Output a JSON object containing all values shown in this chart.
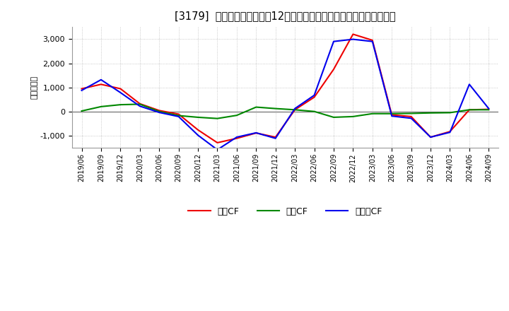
{
  "title": "[3179]  キャッシュフローの12か月移動合計の対前年同期増減額の推移",
  "ylabel": "（百万円）",
  "background_color": "#ffffff",
  "grid_color": "#bbbbbb",
  "x_labels": [
    "2019/06",
    "2019/09",
    "2019/12",
    "2020/03",
    "2020/06",
    "2020/09",
    "2020/12",
    "2021/03",
    "2021/06",
    "2021/09",
    "2021/12",
    "2022/03",
    "2022/06",
    "2022/09",
    "2022/12",
    "2023/03",
    "2023/06",
    "2023/09",
    "2023/12",
    "2024/03",
    "2024/06",
    "2024/09"
  ],
  "operating_cf": [
    950,
    1130,
    950,
    330,
    50,
    -100,
    -750,
    -1280,
    -1100,
    -880,
    -1050,
    80,
    600,
    1750,
    3200,
    2950,
    -130,
    -200,
    -1050,
    -820,
    80,
    100
  ],
  "investing_cf": [
    30,
    210,
    290,
    310,
    10,
    -160,
    -230,
    -280,
    -150,
    190,
    130,
    80,
    10,
    -230,
    -200,
    -80,
    -80,
    -70,
    -50,
    -40,
    80,
    80
  ],
  "free_cf": [
    880,
    1320,
    790,
    230,
    -30,
    -200,
    -970,
    -1570,
    -1050,
    -870,
    -1100,
    130,
    680,
    2900,
    2990,
    2900,
    -180,
    -270,
    -1050,
    -850,
    1130,
    130
  ],
  "operating_color": "#ee0000",
  "investing_color": "#008800",
  "free_color": "#0000ee",
  "ylim": [
    -1500,
    3500
  ],
  "yticks": [
    -1000,
    0,
    1000,
    2000,
    3000
  ],
  "legend_labels": [
    "営業CF",
    "投資CF",
    "フリーCF"
  ]
}
